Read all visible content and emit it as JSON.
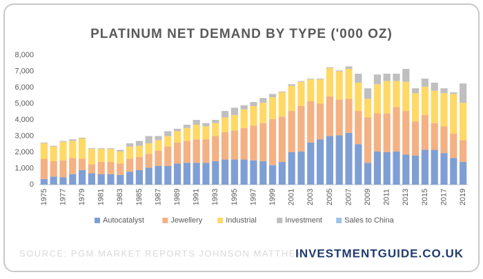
{
  "chart_data": {
    "type": "stacked_bar",
    "title": "PLATINUM NET DEMAND BY TYPE ('000 OZ)",
    "categories": [
      "1975",
      null,
      "1977",
      null,
      "1979",
      null,
      "1981",
      null,
      "1983",
      null,
      "1985",
      null,
      "1987",
      null,
      "1989",
      null,
      "1991",
      null,
      "1993",
      null,
      "1995",
      null,
      "1997",
      null,
      "1999",
      null,
      "2001",
      null,
      "2003",
      null,
      "2005",
      null,
      "2007",
      null,
      "2009",
      null,
      "2011",
      null,
      "2013",
      null,
      "2015",
      null,
      "2017",
      null,
      "2019"
    ],
    "series": [
      {
        "name": "Autocatalyst",
        "color": "#7f9fd4",
        "values": [
          350,
          500,
          450,
          650,
          900,
          700,
          650,
          650,
          600,
          800,
          900,
          1050,
          1150,
          1150,
          1300,
          1350,
          1350,
          1350,
          1450,
          1550,
          1550,
          1550,
          1500,
          1450,
          1200,
          1400,
          2000,
          2050,
          2600,
          2800,
          3000,
          3050,
          3200,
          2500,
          1350,
          2050,
          2000,
          2050,
          1850,
          1800,
          2150,
          2150,
          1950,
          1650,
          1400
        ]
      },
      {
        "name": "Jewellery",
        "color": "#f4b183",
        "values": [
          1250,
          950,
          1050,
          1000,
          700,
          550,
          750,
          750,
          700,
          800,
          800,
          850,
          950,
          1200,
          1300,
          1350,
          1450,
          1450,
          1550,
          1700,
          1800,
          1950,
          2150,
          2350,
          2850,
          2800,
          2550,
          2800,
          2550,
          2200,
          2450,
          2200,
          2100,
          2050,
          2800,
          2350,
          2400,
          2750,
          2700,
          2100,
          2150,
          1650,
          1650,
          1500,
          1350
        ]
      },
      {
        "name": "Industrial",
        "color": "#ffd966",
        "values": [
          950,
          900,
          1150,
          1050,
          1250,
          950,
          800,
          800,
          750,
          750,
          700,
          650,
          650,
          650,
          700,
          800,
          900,
          800,
          800,
          900,
          950,
          1150,
          1200,
          1250,
          1350,
          1500,
          1550,
          1500,
          1350,
          1500,
          1750,
          1750,
          1850,
          1750,
          1150,
          1800,
          2000,
          1600,
          1800,
          1750,
          1750,
          2000,
          2050,
          2450,
          2300
        ]
      },
      {
        "name": "Investment",
        "color": "#bfbfbf",
        "values": [
          50,
          50,
          50,
          100,
          50,
          50,
          50,
          50,
          100,
          200,
          300,
          450,
          250,
          300,
          150,
          200,
          300,
          200,
          200,
          400,
          450,
          250,
          250,
          300,
          200,
          50,
          100,
          50,
          50,
          50,
          50,
          50,
          150,
          550,
          650,
          600,
          450,
          450,
          800,
          300,
          500,
          500,
          300,
          100,
          1200
        ]
      },
      {
        "name": "Sales to China",
        "color": "#9dc3e6",
        "values": [
          0,
          0,
          0,
          0,
          0,
          0,
          0,
          0,
          0,
          0,
          0,
          0,
          0,
          0,
          0,
          0,
          0,
          0,
          0,
          0,
          0,
          0,
          0,
          0,
          0,
          0,
          0,
          0,
          0,
          0,
          0,
          0,
          0,
          0,
          0,
          0,
          0,
          0,
          0,
          0,
          0,
          0,
          0,
          0,
          0
        ]
      }
    ],
    "ylim": [
      0,
      8000
    ],
    "yticks": [
      0,
      {
        "value": 1000,
        "label": "1,000"
      },
      {
        "value": 2000,
        "label": "2,000"
      },
      {
        "value": 3000,
        "label": "3,000"
      },
      {
        "value": 4000,
        "label": "4,000"
      },
      {
        "value": 5000,
        "label": "5,000"
      },
      {
        "value": 6000,
        "label": "6,000"
      },
      {
        "value": 7000,
        "label": "7,000"
      },
      {
        "value": 8000,
        "label": "8,000"
      }
    ],
    "grid": false,
    "legend": "bottom"
  },
  "source": "SOURCE: PGM MARKET REPORTS JOHNSON MATTHEY",
  "brand": "INVESTMENTGUIDE.CO.UK"
}
